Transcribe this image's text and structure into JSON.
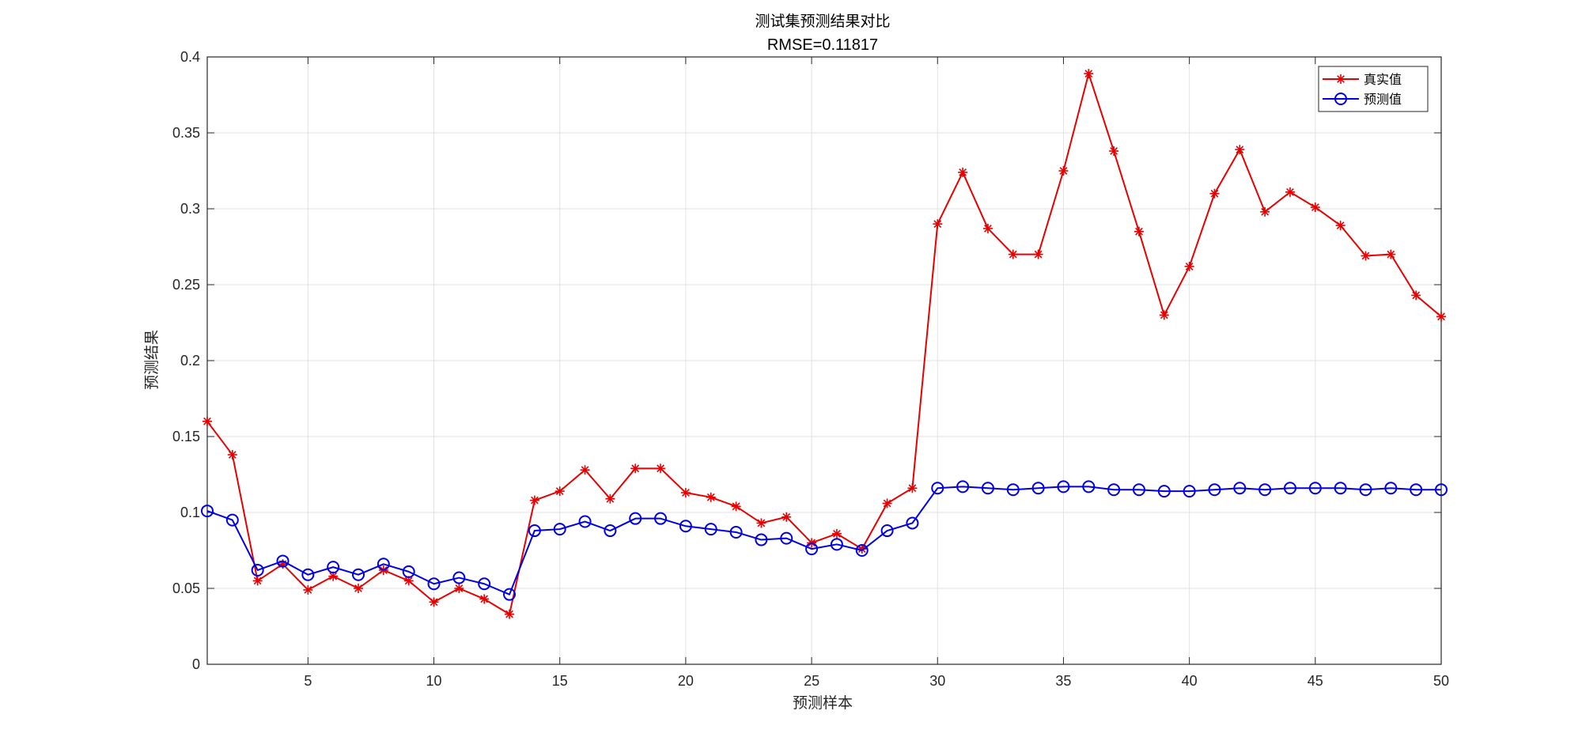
{
  "chart_data": {
    "type": "line",
    "title": "测试集预测结果对比",
    "subtitle": "RMSE=0.11817",
    "xlabel": "预测样本",
    "ylabel": "预测结果",
    "xlim": [
      1,
      50
    ],
    "ylim": [
      0,
      0.4
    ],
    "x_ticks": [
      5,
      10,
      15,
      20,
      25,
      30,
      35,
      40,
      45,
      50
    ],
    "x_tick_labels": [
      "5",
      "10",
      "15",
      "20",
      "25",
      "30",
      "35",
      "40",
      "45",
      "50"
    ],
    "y_ticks": [
      0,
      0.05,
      0.1,
      0.15,
      0.2,
      0.25,
      0.3,
      0.35,
      0.4
    ],
    "y_tick_labels": [
      "0",
      "0.05",
      "0.1",
      "0.15",
      "0.2",
      "0.25",
      "0.3",
      "0.35",
      "0.4"
    ],
    "grid": true,
    "legend_position": "top-right",
    "x": [
      1,
      2,
      3,
      4,
      5,
      6,
      7,
      8,
      9,
      10,
      11,
      12,
      13,
      14,
      15,
      16,
      17,
      18,
      19,
      20,
      21,
      22,
      23,
      24,
      25,
      26,
      27,
      28,
      29,
      30,
      31,
      32,
      33,
      34,
      35,
      36,
      37,
      38,
      39,
      40,
      41,
      42,
      43,
      44,
      45,
      46,
      47,
      48,
      49,
      50
    ],
    "series": [
      {
        "name": "真实值",
        "color": "#e60000",
        "marker": "asterisk",
        "values": [
          0.16,
          0.138,
          0.055,
          0.066,
          0.049,
          0.058,
          0.05,
          0.062,
          0.055,
          0.041,
          0.05,
          0.043,
          0.033,
          0.108,
          0.114,
          0.128,
          0.109,
          0.129,
          0.129,
          0.113,
          0.11,
          0.104,
          0.093,
          0.097,
          0.08,
          0.086,
          0.076,
          0.106,
          0.116,
          0.29,
          0.324,
          0.287,
          0.27,
          0.27,
          0.325,
          0.389,
          0.338,
          0.285,
          0.23,
          0.262,
          0.31,
          0.339,
          0.298,
          0.311,
          0.301,
          0.289,
          0.269,
          0.27,
          0.243,
          0.229
        ]
      },
      {
        "name": "预测值",
        "color": "#0000e6",
        "marker": "circle",
        "values": [
          0.101,
          0.095,
          0.062,
          0.068,
          0.059,
          0.064,
          0.059,
          0.066,
          0.061,
          0.053,
          0.057,
          0.053,
          0.046,
          0.088,
          0.089,
          0.094,
          0.088,
          0.096,
          0.096,
          0.091,
          0.089,
          0.087,
          0.082,
          0.083,
          0.076,
          0.079,
          0.075,
          0.088,
          0.093,
          0.116,
          0.117,
          0.116,
          0.115,
          0.116,
          0.117,
          0.117,
          0.115,
          0.115,
          0.114,
          0.114,
          0.115,
          0.116,
          0.115,
          0.116,
          0.116,
          0.116,
          0.115,
          0.116,
          0.115,
          0.115
        ]
      }
    ]
  }
}
